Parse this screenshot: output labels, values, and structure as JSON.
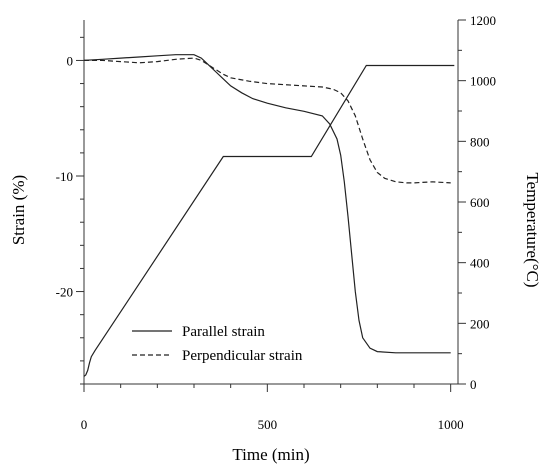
{
  "chart_data": {
    "type": "line",
    "xlabel": "Time (min)",
    "ylabel_left": "Strain (%)",
    "ylabel_right": "Temperature(°C)",
    "xlim": [
      0,
      1020
    ],
    "ylim_left": [
      -28,
      3.5
    ],
    "ylim_right": [
      0,
      1200
    ],
    "x_ticks": [
      0,
      500,
      1000
    ],
    "y_left_ticks": [
      -20,
      -10,
      0
    ],
    "y_right_ticks": [
      0,
      200,
      400,
      600,
      800,
      1000,
      1200
    ],
    "legend_position": "lower-left",
    "series": [
      {
        "name": "Parallel strain",
        "axis": "left",
        "style": "solid",
        "x": [
          0,
          50,
          100,
          150,
          200,
          250,
          300,
          320,
          340,
          360,
          380,
          400,
          430,
          460,
          500,
          550,
          600,
          650,
          670,
          690,
          700,
          710,
          720,
          730,
          740,
          750,
          760,
          780,
          800,
          850,
          900,
          950,
          1000
        ],
        "y": [
          0,
          0.1,
          0.2,
          0.3,
          0.4,
          0.5,
          0.5,
          0.2,
          -0.4,
          -1.0,
          -1.6,
          -2.2,
          -2.8,
          -3.3,
          -3.7,
          -4.1,
          -4.4,
          -4.8,
          -5.5,
          -6.8,
          -8.2,
          -10.5,
          -13.5,
          -16.8,
          -20.0,
          -22.5,
          -24.0,
          -24.9,
          -25.2,
          -25.3,
          -25.3,
          -25.3,
          -25.3
        ]
      },
      {
        "name": "Perpendicular strain",
        "axis": "left",
        "style": "dashed",
        "x": [
          0,
          50,
          100,
          150,
          200,
          250,
          300,
          320,
          340,
          360,
          380,
          400,
          450,
          500,
          550,
          600,
          650,
          680,
          700,
          720,
          740,
          760,
          780,
          800,
          820,
          850,
          880,
          900,
          950,
          1000
        ],
        "y": [
          0,
          0,
          -0.1,
          -0.2,
          -0.1,
          0.1,
          0.2,
          0,
          -0.4,
          -0.8,
          -1.2,
          -1.5,
          -1.8,
          -2.0,
          -2.1,
          -2.2,
          -2.3,
          -2.5,
          -2.8,
          -3.5,
          -4.8,
          -6.8,
          -8.6,
          -9.7,
          -10.2,
          -10.5,
          -10.6,
          -10.6,
          -10.5,
          -10.6
        ]
      },
      {
        "name": "Temperature",
        "axis": "right",
        "style": "solid",
        "x": [
          0,
          5,
          10,
          15,
          20,
          30,
          380,
          620,
          770,
          1010
        ],
        "y": [
          25,
          30,
          45,
          70,
          90,
          110,
          750,
          750,
          1050,
          1050
        ]
      }
    ]
  }
}
